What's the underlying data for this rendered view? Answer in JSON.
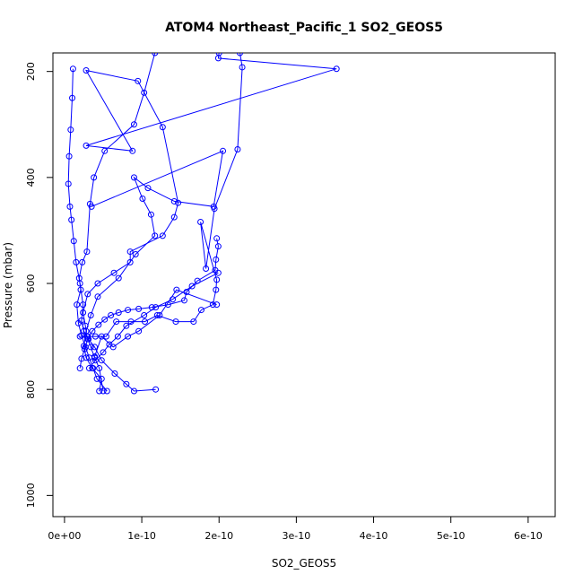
{
  "chart_data": {
    "type": "line",
    "title": "ATOM4 Northeast_Pacific_1 SO2_GEOS5",
    "xlabel": "SO2_GEOS5",
    "ylabel": "Pressure (mbar)",
    "xlim": [
      -1.5e-11,
      6.35e-10
    ],
    "ylim": [
      1040,
      165
    ],
    "y_reversed": true,
    "x_ticks": [
      0,
      1e-10,
      2e-10,
      3e-10,
      4e-10,
      5e-10,
      6e-10
    ],
    "x_tick_labels": [
      "0e+00",
      "1e-10",
      "2e-10",
      "3e-10",
      "4e-10",
      "5e-10",
      "6e-10"
    ],
    "y_ticks": [
      200,
      400,
      600,
      800,
      1000
    ],
    "y_tick_labels": [
      "200",
      "400",
      "600",
      "800",
      "1000"
    ],
    "color": "#0000ff",
    "series": [
      {
        "x": [
          1.18e-10,
          9e-11,
          8e-11,
          6.5e-11,
          4.8e-11,
          3.9e-11,
          3.1e-11,
          2.5e-11,
          2.2e-11,
          2.4e-11,
          2e-11,
          1.5e-11,
          1.2e-11,
          9e-12,
          7e-12,
          5e-12,
          6e-12,
          8e-12,
          1e-11,
          1.1e-11
        ],
        "y": [
          800,
          803,
          790,
          770,
          745,
          720,
          705,
          690,
          670,
          640,
          600,
          560,
          520,
          480,
          455,
          412,
          360,
          310,
          250,
          195
        ]
      },
      {
        "x": [
          5.5e-11,
          4.2e-11,
          3.7e-11,
          3.2e-11,
          2.7e-11,
          2.2e-11,
          1.8e-11,
          1.6e-11,
          2.1e-11,
          1.9e-11,
          2.3e-11,
          2.9e-11,
          3.3e-11,
          3.8e-11,
          5.2e-11,
          9e-11,
          1.03e-10,
          1.17e-10
        ],
        "y": [
          803,
          780,
          760,
          740,
          720,
          698,
          675,
          640,
          612,
          590,
          560,
          540,
          450,
          400,
          350,
          300,
          240,
          165
        ]
      },
      {
        "x": [
          5e-11,
          4.5e-11,
          3.9e-11,
          3.4e-11,
          2.9e-11,
          2.7e-11,
          2.4e-11,
          3e-11,
          4.3e-11,
          6.4e-11,
          8.5e-11,
          8.5e-11,
          1.27e-10,
          1.42e-10,
          1.47e-10,
          1.27e-10,
          9.5e-11,
          2.8e-11,
          8.8e-11,
          2.8e-11,
          3.52e-10,
          1.99e-10,
          2e-10
        ],
        "y": [
          803,
          760,
          740,
          720,
          700,
          680,
          655,
          620,
          600,
          580,
          560,
          540,
          510,
          475,
          448,
          305,
          218,
          198,
          350,
          340,
          195,
          175,
          165
        ]
      },
      {
        "x": [
          4.5e-11,
          4.8e-11,
          3.6e-11,
          2.8e-11,
          2.5e-11,
          2.8e-11,
          3.4e-11,
          4.3e-11,
          7e-11,
          9.2e-11,
          1.17e-10,
          1.12e-10,
          1.01e-10,
          9e-11,
          1.08e-10,
          1.42e-10,
          1.93e-10,
          2.05e-10,
          3.5e-11
        ],
        "y": [
          803,
          780,
          760,
          740,
          718,
          690,
          660,
          625,
          590,
          545,
          510,
          470,
          440,
          400,
          420,
          445,
          455,
          350,
          455
        ]
      },
      {
        "x": [
          2e-11,
          2.2e-11,
          2.6e-11,
          3e-11,
          3.6e-11,
          4.4e-11,
          5.2e-11,
          6e-11,
          7e-11,
          8.2e-11,
          9.6e-11,
          1.13e-10,
          1.34e-10,
          1.55e-10,
          1.58e-10,
          1.72e-10,
          1.95e-10,
          1.96e-10,
          1.99e-10,
          1.97e-10
        ],
        "y": [
          760,
          742,
          724,
          705,
          690,
          678,
          668,
          660,
          655,
          650,
          648,
          645,
          640,
          632,
          616,
          595,
          575,
          555,
          530,
          515
        ]
      },
      {
        "x": [
          2e-11,
          3e-11,
          4e-11,
          5.4e-11,
          6.7e-11,
          8.6e-11,
          1.04e-10,
          1.2e-10,
          1.44e-10,
          1.67e-10,
          1.77e-10,
          1.92e-10,
          1.96e-10,
          1.97e-10,
          1.76e-10,
          1.83e-10,
          1.94e-10,
          2.24e-10,
          2.3e-10,
          2.27e-10
        ],
        "y": [
          700,
          700,
          700,
          700,
          672,
          672,
          672,
          660,
          672,
          672,
          650,
          640,
          612,
          593,
          484,
          572,
          459,
          347,
          192,
          165
        ]
      },
      {
        "x": [
          3.9e-11,
          4.8e-11,
          6.3e-11,
          8.2e-11,
          9.6e-11,
          1.23e-10,
          1.45e-10,
          1.97e-10
        ],
        "y": [
          738,
          700,
          720,
          700,
          690,
          660,
          612,
          640
        ]
      },
      {
        "x": [
          3.2e-11,
          4e-11,
          5e-11,
          5.8e-11,
          6.9e-11,
          8e-11,
          1.03e-10,
          1.18e-10,
          1.4e-10,
          1.65e-10,
          1.99e-10
        ],
        "y": [
          760,
          745,
          730,
          715,
          700,
          680,
          660,
          645,
          630,
          605,
          580
        ]
      }
    ]
  }
}
